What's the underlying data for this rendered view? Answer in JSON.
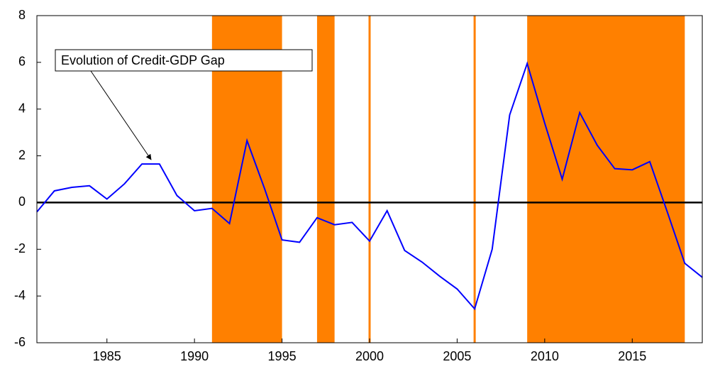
{
  "chart_data": {
    "type": "line",
    "annotation": "Evolution of Credit-GDP Gap",
    "x": [
      1981,
      1982,
      1983,
      1984,
      1985,
      1986,
      1987,
      1988,
      1989,
      1990,
      1991,
      1992,
      1993,
      1994,
      1995,
      1996,
      1997,
      1998,
      1999,
      2000,
      2001,
      2002,
      2003,
      2004,
      2005,
      2006,
      2007,
      2008,
      2009,
      2010,
      2011,
      2012,
      2013,
      2014,
      2015,
      2016,
      2017,
      2018,
      2019
    ],
    "series": [
      {
        "color": "#0000ff",
        "values": [
          -0.4,
          0.5,
          0.65,
          0.72,
          0.15,
          0.8,
          1.65,
          1.65,
          0.3,
          -0.35,
          -0.25,
          -0.9,
          2.65,
          0.6,
          -1.6,
          -1.7,
          -0.65,
          -0.95,
          -0.85,
          -1.65,
          -0.35,
          -2.05,
          -2.55,
          -3.15,
          -3.7,
          -4.55,
          -2.0,
          3.75,
          5.95,
          3.4,
          1.0,
          3.85,
          2.45,
          1.45,
          1.4,
          1.75,
          -0.4,
          -2.6,
          -3.2
        ]
      }
    ],
    "shaded": [
      [
        1991,
        1995
      ],
      [
        1997,
        1998
      ],
      [
        2000,
        2000
      ],
      [
        2006,
        2006
      ],
      [
        2009,
        2018
      ]
    ],
    "shade_color": "#ff8000",
    "xlim": [
      1981,
      2019
    ],
    "xticks": [
      1985,
      1990,
      1995,
      2000,
      2005,
      2010,
      2015
    ],
    "ylim": [
      -6,
      8
    ],
    "yticks": [
      -6,
      -4,
      -2,
      0,
      2,
      4,
      6,
      8
    ]
  }
}
